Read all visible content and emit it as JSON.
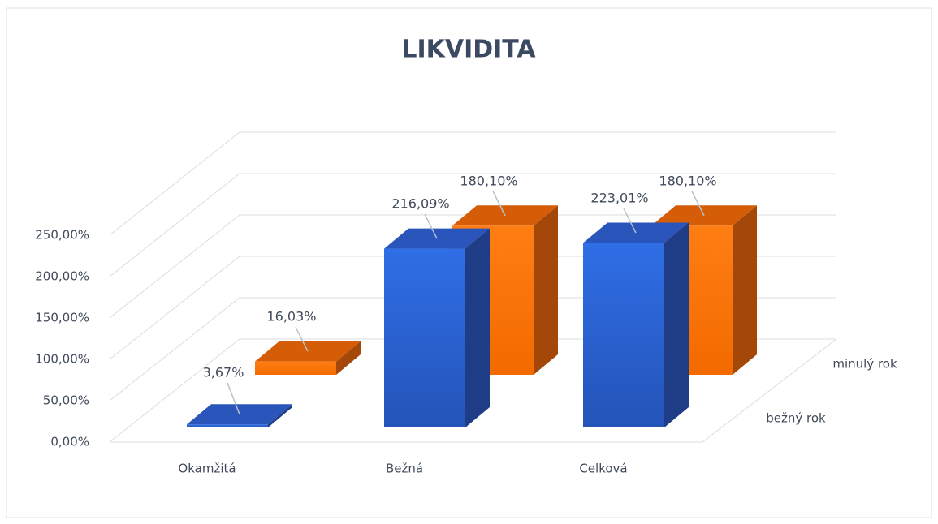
{
  "chart_data": {
    "type": "bar3d",
    "title": "LIKVIDITA",
    "categories": [
      "Okamžitá",
      "Bežná",
      "Celková"
    ],
    "series": [
      {
        "name": "bežný rok",
        "color": "#2e6be0",
        "values": [
          3.67,
          216.09,
          223.01
        ],
        "value_labels": [
          "3,67%",
          "216,09%",
          "223,01%"
        ]
      },
      {
        "name": "minulý rok",
        "color": "#ff7b10",
        "values": [
          16.03,
          180.1,
          180.1
        ],
        "value_labels": [
          "16,03%",
          "180,10%",
          "180,10%"
        ]
      }
    ],
    "ylim": [
      0,
      250
    ],
    "yticks": [
      {
        "value": 0,
        "label": "0,00%"
      },
      {
        "value": 50,
        "label": "50,00%"
      },
      {
        "value": 100,
        "label": "100,00%"
      },
      {
        "value": 150,
        "label": "150,00%"
      },
      {
        "value": 200,
        "label": "200,00%"
      },
      {
        "value": 250,
        "label": "250,00%"
      }
    ],
    "grid": true
  }
}
